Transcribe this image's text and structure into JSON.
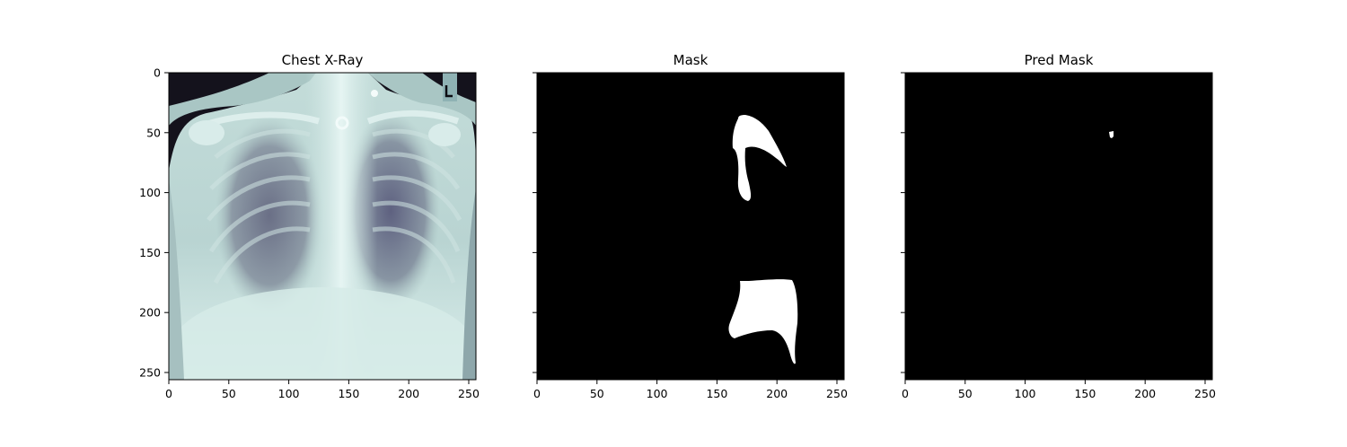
{
  "figure": {
    "panels": [
      {
        "id": "xray",
        "title": "Chest X-Ray",
        "show_y_labels": true
      },
      {
        "id": "mask",
        "title": "Mask",
        "show_y_labels": false
      },
      {
        "id": "pred",
        "title": "Pred Mask",
        "show_y_labels": false
      }
    ],
    "axes": {
      "x_ticks": [
        0,
        50,
        100,
        150,
        200,
        250
      ],
      "y_ticks": [
        0,
        50,
        100,
        150,
        200,
        250
      ],
      "x_range": [
        0,
        256
      ],
      "y_range": [
        0,
        256
      ],
      "y_inverted": true
    },
    "colors": {
      "mask_background": "#000000",
      "mask_foreground": "#ffffff",
      "xray_colormap": "bone"
    }
  }
}
